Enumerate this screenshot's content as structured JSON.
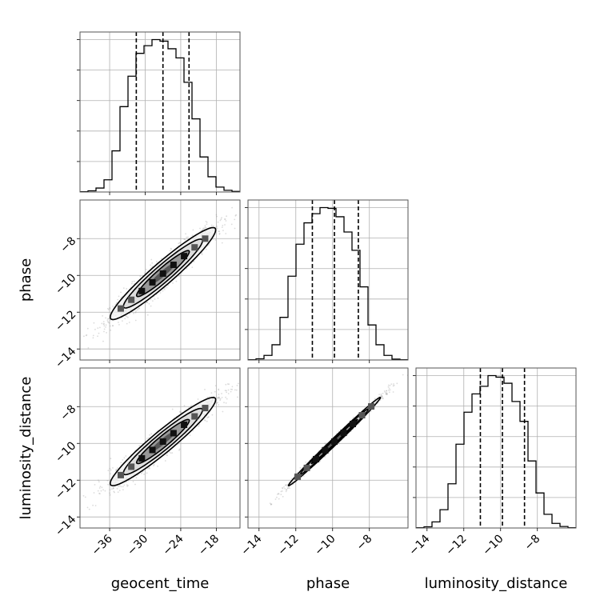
{
  "chart_data": {
    "type": "corner",
    "parameters": [
      "geocent_time",
      "phase",
      "luminosity_distance"
    ],
    "axis_labels": {
      "x": [
        "geocent_time",
        "phase",
        "luminosity_distance"
      ],
      "y": [
        "phase",
        "luminosity_distance"
      ]
    },
    "ranges": {
      "geocent_time": [
        -41,
        -14
      ],
      "phase": [
        -14.6,
        -5.9
      ],
      "luminosity_distance": [
        -14.6,
        -5.9
      ]
    },
    "ticks": {
      "geocent_time": [
        -36,
        -30,
        -24,
        -18
      ],
      "phase": [
        -14,
        -12,
        -10,
        -8
      ],
      "luminosity_distance": [
        -14,
        -12,
        -10,
        -8
      ]
    },
    "tick_labels": {
      "geocent_time": [
        "−36",
        "−30",
        "−24",
        "−18"
      ],
      "phase": [
        "−14",
        "−12",
        "−10",
        "−8"
      ],
      "luminosity_distance": [
        "−14",
        "−12",
        "−10",
        "−8"
      ]
    },
    "quantiles": {
      "geocent_time": [
        -31.5,
        -27.0,
        -22.6
      ],
      "phase": [
        -11.1,
        -9.9,
        -8.6
      ],
      "luminosity_distance": [
        -11.1,
        -9.9,
        -8.7
      ]
    },
    "histograms": {
      "geocent_time": {
        "edges": [
          -41,
          -39.65,
          -38.3,
          -36.95,
          -35.6,
          -34.25,
          -32.9,
          -31.55,
          -30.2,
          -28.85,
          -27.5,
          -26.15,
          -24.8,
          -23.45,
          -22.1,
          -20.75,
          -19.4,
          -18.05,
          -16.7,
          -15.35,
          -14
        ],
        "counts": [
          2,
          8,
          26,
          80,
          270,
          560,
          760,
          910,
          960,
          1000,
          990,
          940,
          880,
          720,
          480,
          230,
          100,
          32,
          11,
          4
        ]
      },
      "phase": {
        "edges": [
          -14.6,
          -14.165,
          -13.73,
          -13.295,
          -12.86,
          -12.425,
          -11.99,
          -11.555,
          -11.12,
          -10.685,
          -10.25,
          -9.815,
          -9.38,
          -8.945,
          -8.51,
          -8.075,
          -7.64,
          -7.205,
          -6.77,
          -6.335,
          -5.9
        ],
        "counts": [
          2,
          8,
          30,
          100,
          280,
          550,
          760,
          900,
          960,
          1000,
          995,
          940,
          840,
          720,
          480,
          230,
          100,
          30,
          6,
          2
        ]
      },
      "luminosity_distance": {
        "edges": [
          -14.6,
          -14.165,
          -13.73,
          -13.295,
          -12.86,
          -12.425,
          -11.99,
          -11.555,
          -11.12,
          -10.685,
          -10.25,
          -9.815,
          -9.38,
          -8.945,
          -8.51,
          -8.075,
          -7.64,
          -7.205,
          -6.77,
          -6.335,
          -5.9
        ],
        "counts": [
          2,
          8,
          40,
          120,
          290,
          550,
          760,
          880,
          930,
          1000,
          990,
          950,
          830,
          700,
          440,
          230,
          90,
          30,
          10,
          2
        ]
      }
    },
    "correlation": {
      "geocent_time-phase": 0.95,
      "geocent_time-luminosity_distance": 0.95,
      "phase-luminosity_distance": 0.995
    },
    "grid": true,
    "colors": {
      "histogram_line": "#000000",
      "quantile_line": "#000000",
      "scatter_points": "#9a9a9a",
      "contour_line": "#000000",
      "grid": "#b0b0b0"
    }
  }
}
